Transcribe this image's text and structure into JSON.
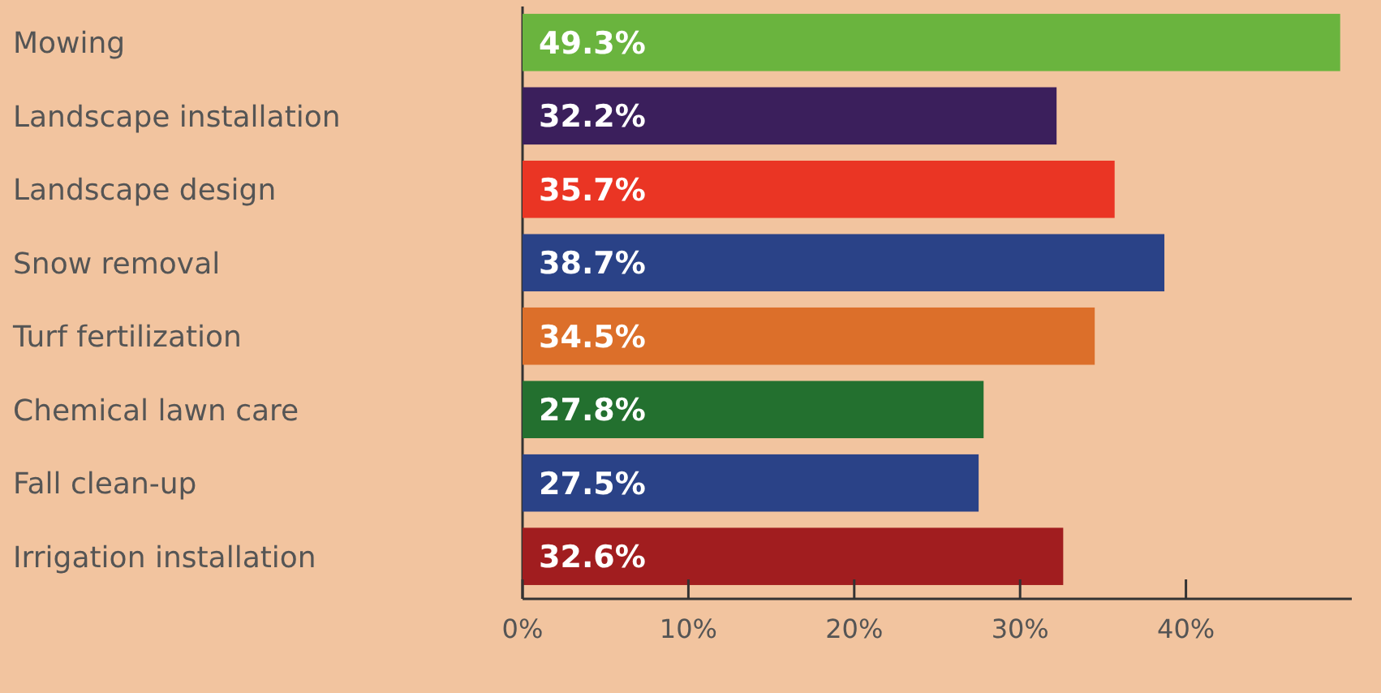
{
  "chart_data": {
    "type": "bar",
    "orientation": "horizontal",
    "categories": [
      "Mowing",
      "Landscape installation",
      "Landscape design",
      "Snow removal",
      "Turf fertilization",
      "Chemical lawn care",
      "Fall clean-up",
      "Irrigation installation"
    ],
    "values": [
      49.3,
      32.2,
      35.7,
      38.7,
      34.5,
      27.8,
      27.5,
      32.6
    ],
    "colors": [
      "#6ab43e",
      "#3b1f5c",
      "#ea3524",
      "#2a4287",
      "#dc6f2a",
      "#23702f",
      "#2a4287",
      "#a11d1f"
    ],
    "value_labels": [
      "49.3%",
      "32.2%",
      "35.7%",
      "38.7%",
      "34.5%",
      "27.8%",
      "27.5%",
      "32.6%"
    ],
    "xlim": [
      0,
      50
    ],
    "xticks": [
      {
        "value": 0,
        "label": "0%"
      },
      {
        "value": 10,
        "label": "10%"
      },
      {
        "value": 20,
        "label": "20%"
      },
      {
        "value": 30,
        "label": "30%"
      },
      {
        "value": 40,
        "label": "40%"
      }
    ],
    "grid": false
  }
}
